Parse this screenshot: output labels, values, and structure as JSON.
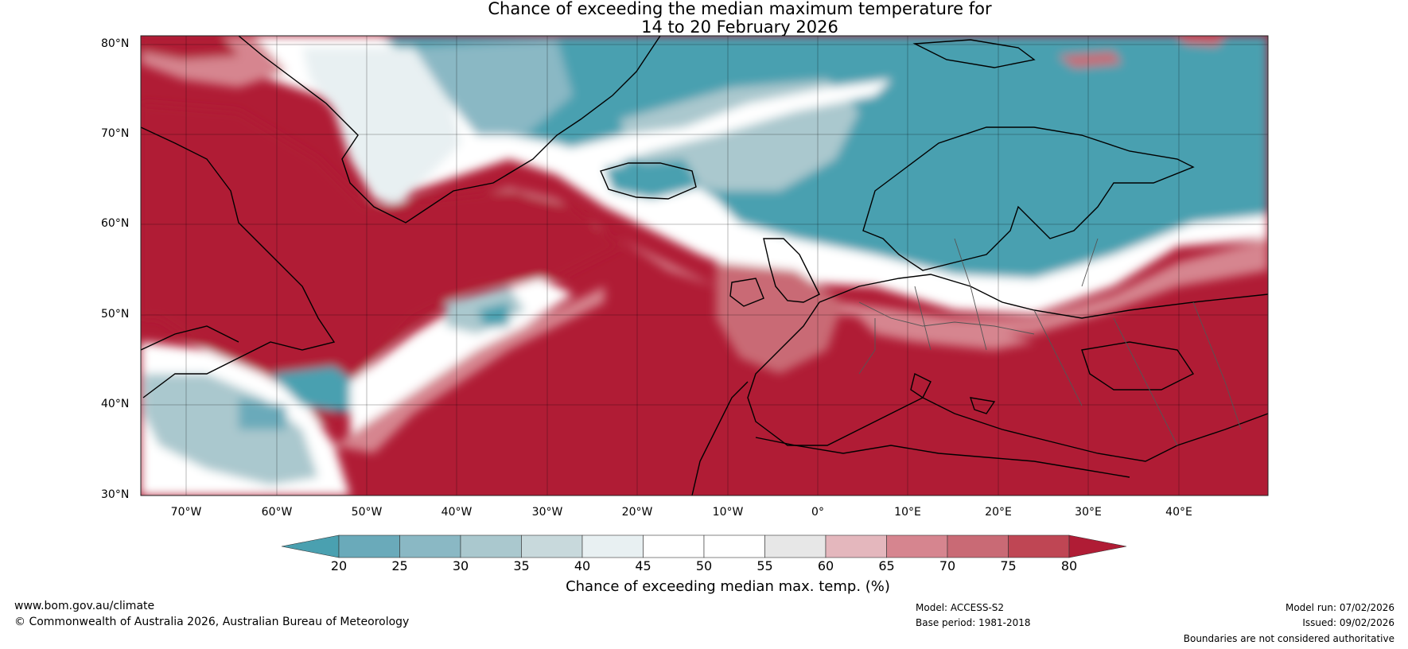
{
  "title": {
    "line1": "Chance of exceeding the median maximum temperature for",
    "line2": "14 to 20 February 2026"
  },
  "lat_labels": [
    "80°N",
    "70°N",
    "60°N",
    "50°N",
    "40°N",
    "30°N"
  ],
  "lon_labels": [
    "70°W",
    "60°W",
    "50°W",
    "40°W",
    "30°W",
    "20°W",
    "10°W",
    "0°",
    "10°E",
    "20°E",
    "30°E",
    "40°E"
  ],
  "colorbar": {
    "ticks": [
      "20",
      "25",
      "30",
      "35",
      "40",
      "45",
      "50",
      "55",
      "60",
      "65",
      "70",
      "75",
      "80"
    ],
    "colors": [
      "#4aa0b0",
      "#6aaaba",
      "#8ab8c4",
      "#aac8ce",
      "#c8d9dc",
      "#e8f0f2",
      "#ffffff",
      "#ffffff",
      "#e7e7e7",
      "#e4b7bd",
      "#d6858f",
      "#c96a75",
      "#bf4654",
      "#b01c35"
    ],
    "label": "Chance of exceeding median max. temp. (%)"
  },
  "footer": {
    "website": "www.bom.gov.au/climate",
    "copyright": "© Commonwealth of Australia 2026, Australian Bureau of Meteorology",
    "model": "Model: ACCESS-S2",
    "base_period": "Base period: 1981-2018",
    "model_run": "Model run: 07/02/2026",
    "issued": "Issued: 09/02/2026",
    "disclaimer": "Boundaries are not considered authoritative"
  }
}
